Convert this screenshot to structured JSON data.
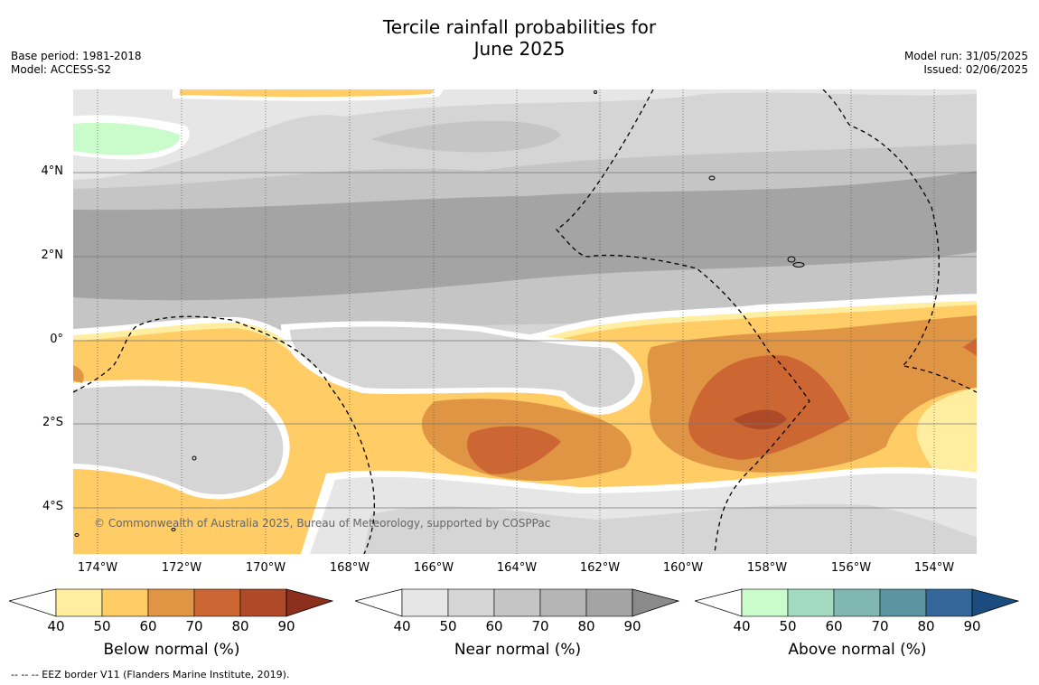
{
  "title_line1": "Tercile rainfall probabilities for",
  "title_line2": "June 2025",
  "base_period": "Base period: 1981-2018",
  "model": "Model: ACCESS-S2",
  "model_run": "Model run: 31/05/2025",
  "issued": "Issued: 02/06/2025",
  "lat_ticks": [
    "4°N",
    "2°N",
    "0°",
    "2°S",
    "4°S"
  ],
  "lon_ticks": [
    "174°W",
    "172°W",
    "170°W",
    "168°W",
    "166°W",
    "164°W",
    "162°W",
    "160°W",
    "158°W",
    "156°W",
    "154°W"
  ],
  "credit": "© Commonwealth of Australia 2025, Bureau of Meteorology, supported by COSPPac",
  "colorbars": [
    {
      "label": "Below normal (%)",
      "ticks": [
        "40",
        "50",
        "60",
        "70",
        "80",
        "90"
      ],
      "colors": [
        "#ffeea0",
        "#ffcc66",
        "#e09545",
        "#cc6633",
        "#ae4a28",
        "#8c2f1c"
      ]
    },
    {
      "label": "Near normal (%)",
      "ticks": [
        "40",
        "50",
        "60",
        "70",
        "80",
        "90"
      ],
      "colors": [
        "#e6e6e6",
        "#d5d5d5",
        "#c5c5c5",
        "#b5b5b5",
        "#a4a4a4",
        "#8a8a8a"
      ]
    },
    {
      "label": "Above normal (%)",
      "ticks": [
        "40",
        "50",
        "60",
        "70",
        "80",
        "90"
      ],
      "colors": [
        "#c9fcca",
        "#a3dbc0",
        "#80b8b1",
        "#5b94a0",
        "#336699",
        "#1a4c80"
      ]
    }
  ],
  "footnote": "--  --  -- EEZ border V11 (Flanders Marine Institute, 2019)."
}
